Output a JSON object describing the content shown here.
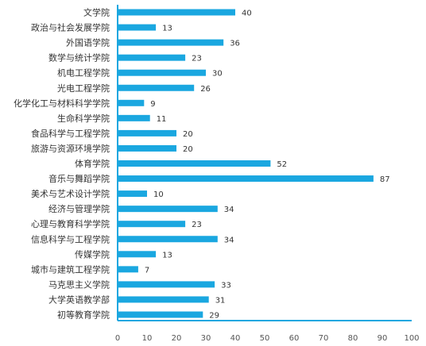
{
  "colors": {
    "bar": "#1AA7E0",
    "axis": "#1AA7E0",
    "text": "#333333"
  },
  "chart_data": {
    "type": "bar",
    "orientation": "horizontal",
    "categories": [
      "文学院",
      "政治与社会发展学院",
      "外国语学院",
      "数学与统计学院",
      "机电工程学院",
      "光电工程学院",
      "化学化工与材料科学学院",
      "生命科学学院",
      "食品科学与工程学院",
      "旅游与资源环境学院",
      "体育学院",
      "音乐与舞蹈学院",
      "美术与艺术设计学院",
      "经济与管理学院",
      "心理与教育科学学院",
      "信息科学与工程学院",
      "传媒学院",
      "城市与建筑工程学院",
      "马克思主义学院",
      "大学英语教学部",
      "初等教育学院"
    ],
    "values": [
      40,
      13,
      36,
      23,
      30,
      26,
      9,
      11,
      20,
      20,
      52,
      87,
      10,
      34,
      23,
      34,
      13,
      7,
      33,
      31,
      29
    ],
    "xlim": [
      0,
      100
    ],
    "xticks": [
      0,
      10,
      20,
      30,
      40,
      50,
      60,
      70,
      80,
      90,
      100
    ],
    "grid": false,
    "data_labels": true
  }
}
